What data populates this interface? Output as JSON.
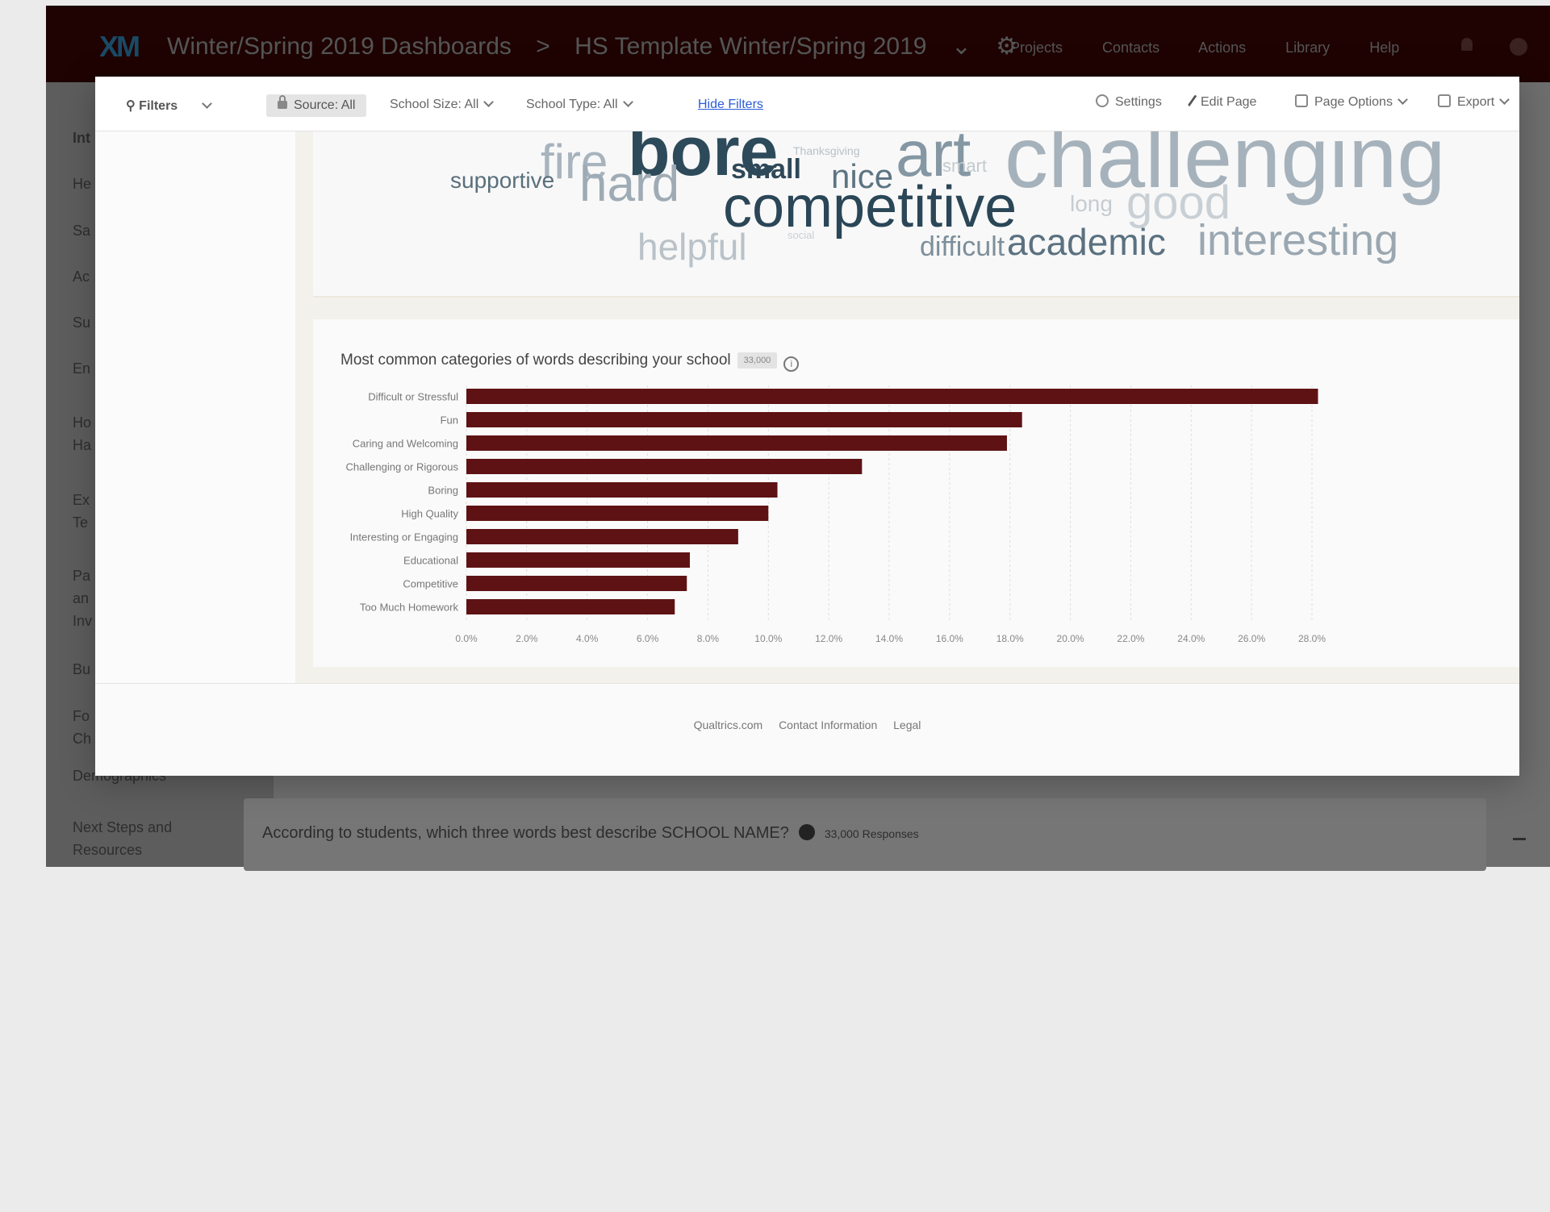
{
  "app": {
    "logo": "XM",
    "breadcrumb": [
      "Winter/Spring 2019 Dashboards",
      ">",
      "HS Template Winter/Spring 2019",
      "⌄",
      "⚙"
    ],
    "nav": [
      "Projects",
      "Contacts",
      "Actions",
      "Library",
      "Help"
    ]
  },
  "sidebar": {
    "items": [
      "Int",
      "He",
      "Sa",
      "Ac",
      "Su",
      "En",
      "Ho Ha",
      "Ex Te",
      "Pa an Inv",
      "Bu",
      "Fo Ch",
      "Demographics",
      "Next Steps and Resources"
    ]
  },
  "background_question": {
    "text": "According to students, which three words best describe SCHOOL NAME?",
    "responses": "33,000 Responses"
  },
  "filterbar": {
    "filters_label": "Filters",
    "source": "Source: All",
    "school_size": "School Size:  All",
    "school_type": "School Type:  All",
    "hide_filters": "Hide Filters",
    "settings": "Settings",
    "edit_page": "Edit Page",
    "page_options": "Page Options",
    "export": "Export"
  },
  "word_cloud": {
    "words": [
      {
        "text": "fire",
        "color": "#a7b3bd"
      },
      {
        "text": "bore",
        "color": "#2d4a5a"
      },
      {
        "text": "Thanksgiving",
        "color": "#b8c0c6"
      },
      {
        "text": "art",
        "color": "#8497a3"
      },
      {
        "text": "challenging",
        "color": "#a6b2bb"
      },
      {
        "text": "supportive",
        "color": "#5a6f7c"
      },
      {
        "text": "hard",
        "color": "#9fabb4"
      },
      {
        "text": "small",
        "color": "#2f4858"
      },
      {
        "text": "nice",
        "color": "#5d7482"
      },
      {
        "text": "smart",
        "color": "#c2cacf"
      },
      {
        "text": "competitive",
        "color": "#2a4657"
      },
      {
        "text": "long",
        "color": "#c5ccd1"
      },
      {
        "text": "good",
        "color": "#c9d0d5"
      },
      {
        "text": "helpful",
        "color": "#b9c2c8"
      },
      {
        "text": "social",
        "color": "#c8cfd4"
      },
      {
        "text": "difficult",
        "color": "#7d8f9b"
      },
      {
        "text": "academic",
        "color": "#5b7180"
      },
      {
        "text": "interesting",
        "color": "#9aa7b1"
      }
    ]
  },
  "chart": {
    "title": "Most common categories of words describing your school",
    "responses_badge": "33,000",
    "info": "i"
  },
  "chart_data": {
    "type": "bar",
    "orientation": "horizontal",
    "categories": [
      "Difficult or Stressful",
      "Fun",
      "Caring and Welcoming",
      "Challenging or Rigorous",
      "Boring",
      "High Quality",
      "Interesting or Engaging",
      "Educational",
      "Competitive",
      "Too Much Homework"
    ],
    "values": [
      28.2,
      18.4,
      17.9,
      13.1,
      10.3,
      10.0,
      9.0,
      7.4,
      7.3,
      6.9
    ],
    "xlim": [
      0,
      28
    ],
    "xticks": [
      "0.0%",
      "2.0%",
      "4.0%",
      "6.0%",
      "8.0%",
      "10.0%",
      "12.0%",
      "14.0%",
      "16.0%",
      "18.0%",
      "20.0%",
      "22.0%",
      "24.0%",
      "26.0%",
      "28.0%"
    ],
    "grid": true,
    "bar_color": "#5e1214"
  },
  "footer": {
    "links": [
      "Qualtrics.com",
      "Contact Information",
      "Legal"
    ]
  }
}
